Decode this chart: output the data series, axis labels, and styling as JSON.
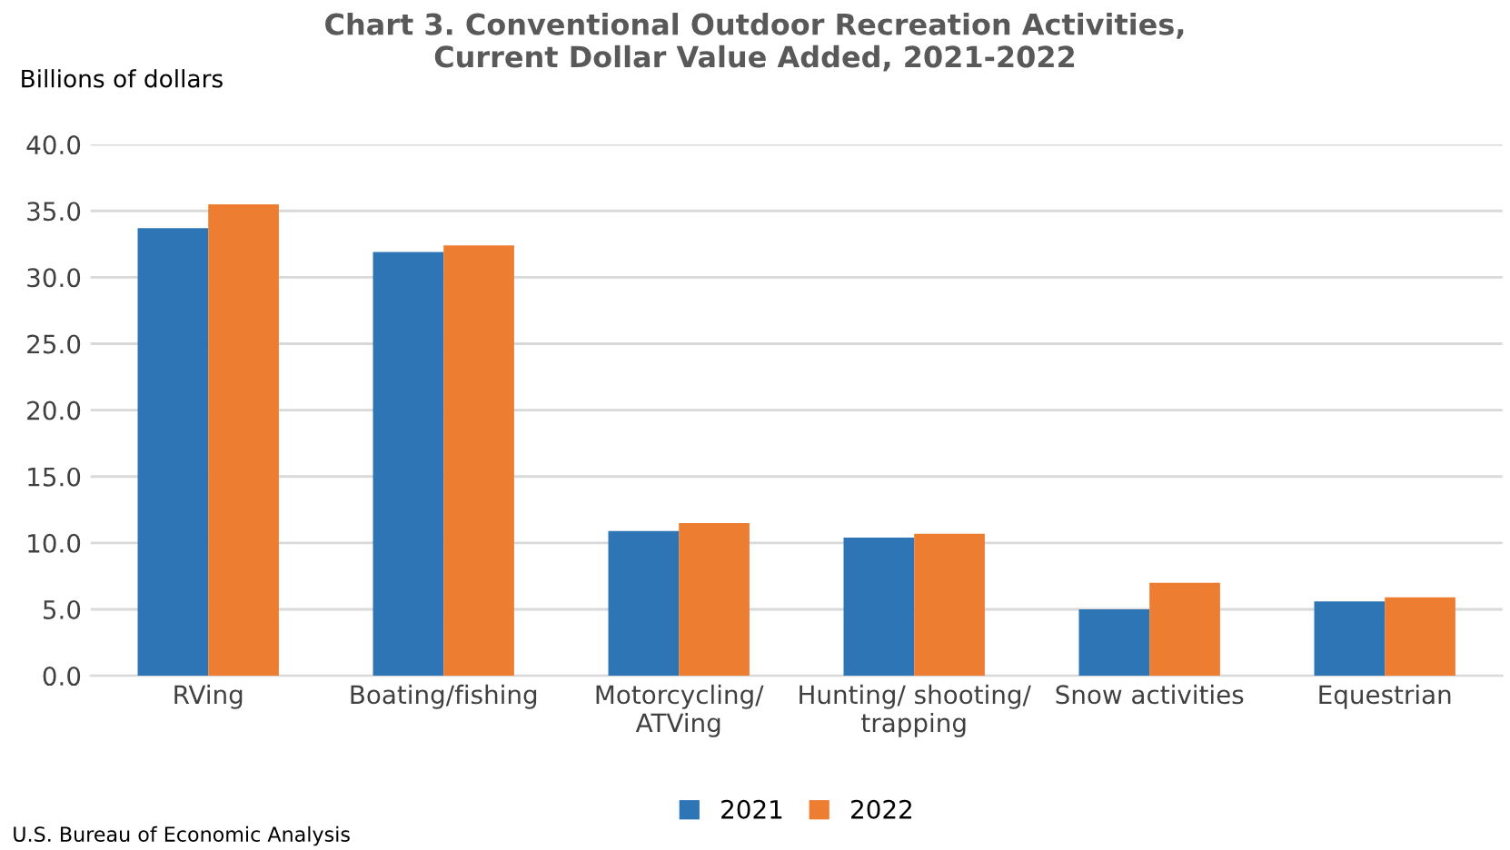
{
  "chart_data": {
    "type": "bar",
    "title": "Chart 3. Conventional Outdoor Recreation Activities,\nCurrent Dollar Value Added, 2021-2022",
    "ylabel": "Billions of dollars",
    "categories": [
      "RVing",
      "Boating/fishing",
      "Motorcycling/\nATVing",
      "Hunting/ shooting/\ntrapping",
      "Snow activities",
      "Equestrian"
    ],
    "series": [
      {
        "name": "2021",
        "color": "#2e75b6",
        "values": [
          33.7,
          31.9,
          10.9,
          10.4,
          5.0,
          5.6
        ]
      },
      {
        "name": "2022",
        "color": "#ed7d31",
        "values": [
          35.5,
          32.4,
          11.5,
          10.7,
          7.0,
          5.9
        ]
      }
    ],
    "ylim": [
      0,
      40
    ],
    "yticks": [
      {
        "value": 0,
        "label": "0.0"
      },
      {
        "value": 5,
        "label": "5.0"
      },
      {
        "value": 10,
        "label": "10.0"
      },
      {
        "value": 15,
        "label": "15.0"
      },
      {
        "value": 20,
        "label": "20.0"
      },
      {
        "value": 25,
        "label": "25.0"
      },
      {
        "value": 30,
        "label": "30.0"
      },
      {
        "value": 35,
        "label": "35.0"
      },
      {
        "value": 40,
        "label": "40.0"
      }
    ],
    "grid": "y",
    "legend": "bottom",
    "annotations": [
      "U.S. Bureau of Economic Analysis"
    ]
  }
}
